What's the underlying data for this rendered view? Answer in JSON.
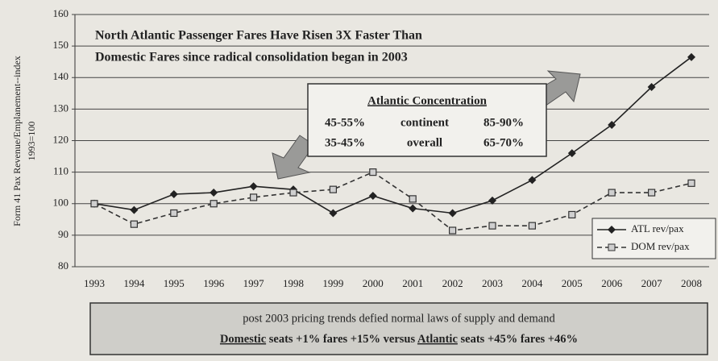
{
  "chart_data": {
    "type": "line",
    "title": [
      "North Atlantic Passenger Fares Have Risen 3X Faster Than",
      "Domestic Fares since radical consolidation began in 2003"
    ],
    "y_label": [
      "Form 41 Pax Revenue/Emplanement--index",
      "1993=100"
    ],
    "categories": [
      "1993",
      "1994",
      "1995",
      "1996",
      "1997",
      "1998",
      "1999",
      "2000",
      "2001",
      "2002",
      "2003",
      "2004",
      "2005",
      "2006",
      "2007",
      "2008"
    ],
    "series": [
      {
        "name": "ATL rev/pax",
        "color": "#222222",
        "dashed": false,
        "marker": "diamond",
        "values": [
          100,
          98,
          103,
          103.5,
          105.5,
          104.5,
          97,
          102.5,
          98.5,
          97,
          101,
          107.5,
          116,
          125,
          137,
          146.5
        ]
      },
      {
        "name": "DOM rev/pax",
        "color": "#333333",
        "dashed": true,
        "marker": "square",
        "values": [
          100,
          93.5,
          97,
          100,
          102,
          103.5,
          104.5,
          110,
          101.5,
          91.5,
          93,
          93,
          96.5,
          103.5,
          103.5,
          106.5
        ]
      }
    ],
    "ylim": [
      80,
      160
    ],
    "yticks": [
      80,
      90,
      100,
      110,
      120,
      130,
      140,
      150,
      160
    ],
    "grid": true,
    "legend": "lower right",
    "annotation": {
      "title": "Atlantic Concentration",
      "rows": [
        [
          "45-55%",
          "continent",
          "85-90%"
        ],
        [
          "35-45%",
          "overall",
          "65-70%"
        ]
      ]
    },
    "footer": {
      "line1": "post 2003 pricing trends defied normal laws of supply and demand",
      "line2": [
        {
          "text": "Domestic",
          "underline": true
        },
        {
          "text": " seats +1% fares +15% versus ",
          "underline": false
        },
        {
          "text": "Atlantic",
          "underline": true
        },
        {
          "text": " seats +45% fares +46%",
          "underline": false
        }
      ]
    }
  }
}
